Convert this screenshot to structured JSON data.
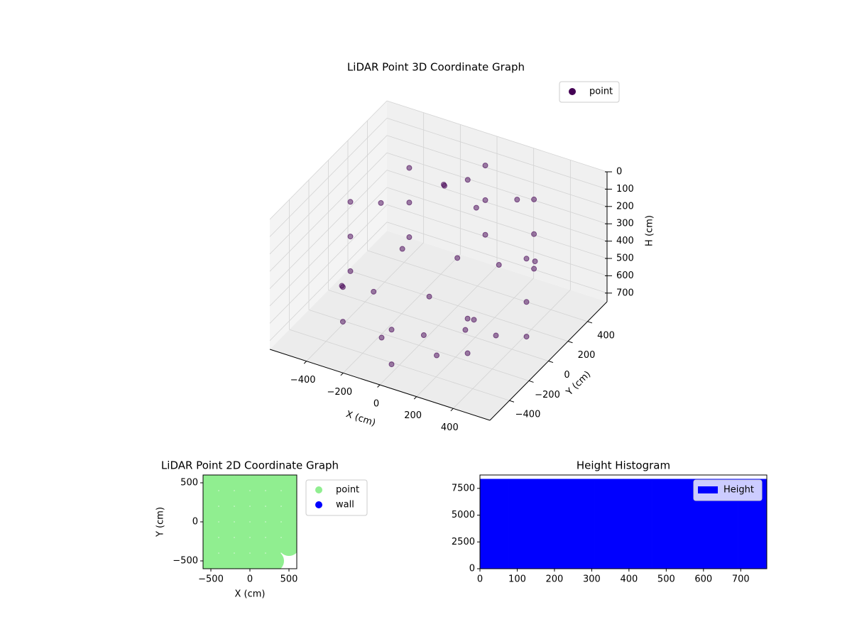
{
  "chart_data": [
    {
      "type": "scatter3d",
      "title": "LiDAR Point 3D Coordinate Graph",
      "xlabel": "X (cm)",
      "ylabel": "Y (cm)",
      "zlabel": "H (cm)",
      "series": [
        {
          "name": "point",
          "color": "#440154",
          "x": [
            -480,
            -480,
            -480,
            -340,
            -340,
            -340,
            0,
            0,
            0,
            340,
            340,
            340,
            480,
            480,
            480,
            340,
            340,
            0,
            0,
            -340,
            -340,
            -420,
            -200,
            200,
            420,
            420,
            -420,
            -150,
            150,
            0,
            100,
            -100,
            50,
            -50,
            200,
            -250,
            250,
            0,
            -300,
            300
          ],
          "y": [
            0,
            0,
            0,
            340,
            340,
            340,
            480,
            480,
            480,
            340,
            340,
            340,
            0,
            0,
            0,
            -340,
            -340,
            -480,
            -480,
            -340,
            -340,
            200,
            430,
            430,
            200,
            -200,
            -200,
            -300,
            -300,
            -150,
            200,
            250,
            100,
            0,
            -100,
            100,
            150,
            300,
            -100,
            -200
          ],
          "z": [
            200,
            400,
            600,
            150,
            350,
            550,
            100,
            300,
            500,
            100,
            300,
            500,
            200,
            450,
            650,
            400,
            600,
            500,
            700,
            450,
            650,
            300,
            250,
            200,
            350,
            550,
            550,
            700,
            700,
            720,
            150,
            120,
            400,
            600,
            650,
            450,
            400,
            80,
            600,
            500
          ]
        }
      ],
      "xlim": [
        -600,
        600
      ],
      "ylim": [
        -600,
        600
      ],
      "zlim": [
        750,
        0
      ],
      "xticks": [
        {
          "value": -400,
          "label": "−400"
        },
        {
          "value": -200,
          "label": "−200"
        },
        0,
        200,
        400
      ],
      "yticks": [
        {
          "value": -400,
          "label": "−400"
        },
        {
          "value": -200,
          "label": "−200"
        },
        0,
        200,
        400
      ],
      "zticks": [
        0,
        100,
        200,
        300,
        400,
        500,
        600,
        700
      ],
      "grid": true,
      "legend": "upper right"
    },
    {
      "type": "scatter",
      "title": "LiDAR Point 2D Coordinate Graph",
      "xlabel": "X (cm)",
      "ylabel": "Y (cm)",
      "series": [
        {
          "name": "point",
          "color": "#90ee90",
          "x": [
            -500,
            -500,
            -500,
            -500,
            -500,
            -500,
            -300,
            -300,
            -300,
            -300,
            -300,
            -300,
            -100,
            -100,
            -100,
            -100,
            -100,
            -100,
            100,
            100,
            100,
            100,
            100,
            100,
            300,
            300,
            300,
            300,
            300,
            300,
            500,
            500,
            500,
            500,
            500
          ],
          "y": [
            -500,
            -300,
            -100,
            100,
            300,
            500,
            -500,
            -300,
            -100,
            100,
            300,
            500,
            -500,
            -300,
            -100,
            100,
            300,
            500,
            -500,
            -300,
            -100,
            100,
            300,
            500,
            -500,
            -300,
            -100,
            100,
            300,
            500,
            -300,
            -100,
            100,
            300,
            500
          ]
        },
        {
          "name": "wall",
          "color": "#0000ff",
          "x": [],
          "y": []
        }
      ],
      "xlim": [
        -600,
        600
      ],
      "ylim": [
        -600,
        600
      ],
      "xticks": [
        {
          "value": -500,
          "label": "−500"
        },
        0,
        500
      ],
      "yticks": [
        {
          "value": -500,
          "label": "−500"
        },
        0,
        500
      ],
      "legend": "outside upper right"
    },
    {
      "type": "histogram",
      "title": "Height Histogram",
      "series": [
        {
          "name": "Height",
          "color": "#0000ff",
          "bins": [
            0,
            77,
            154,
            231,
            308,
            385,
            462,
            539,
            616,
            693,
            770
          ],
          "counts": [
            8370,
            8370,
            8370,
            8370,
            8370,
            8370,
            8370,
            8370,
            8370,
            8370
          ]
        }
      ],
      "xlim": [
        0,
        770
      ],
      "ylim": [
        0,
        8750
      ],
      "xticks": [
        0,
        100,
        200,
        300,
        400,
        500,
        600,
        700
      ],
      "yticks": [
        0,
        2500,
        5000,
        7500
      ],
      "legend": "upper right"
    }
  ]
}
